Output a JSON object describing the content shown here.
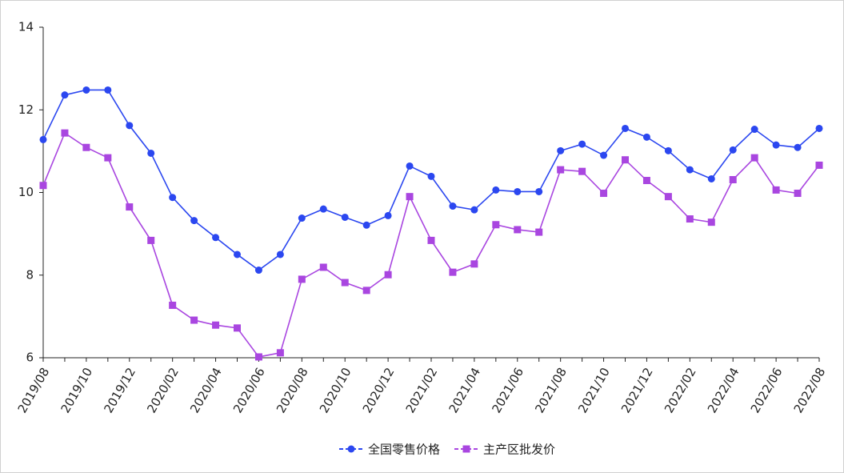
{
  "chart_data": {
    "type": "line",
    "categories": [
      "2019/08",
      null,
      "2019/10",
      null,
      "2019/12",
      null,
      "2020/02",
      null,
      "2020/04",
      null,
      "2020/06",
      null,
      "2020/08",
      null,
      "2020/10",
      null,
      "2020/12",
      null,
      "2021/02",
      null,
      "2021/04",
      null,
      "2021/06",
      null,
      "2021/08",
      null,
      "2021/10",
      null,
      "2021/12",
      null,
      "2022/02",
      null,
      "2022/04",
      null,
      "2022/06",
      null,
      "2022/08"
    ],
    "series": [
      {
        "name": "全国零售价格",
        "color": "#2b47f0",
        "marker": "circle",
        "values": [
          11.28,
          12.36,
          12.48,
          12.48,
          11.62,
          10.95,
          9.88,
          9.32,
          8.91,
          8.5,
          8.12,
          8.5,
          9.38,
          9.6,
          9.4,
          9.21,
          9.44,
          10.64,
          10.39,
          9.67,
          9.58,
          10.06,
          10.02,
          10.02,
          11.01,
          11.17,
          10.9,
          11.55,
          11.34,
          11.01,
          10.55,
          10.33,
          11.03,
          11.53,
          11.15,
          11.09,
          11.55
        ]
      },
      {
        "name": "主产区批发价",
        "color": "#a946e0",
        "marker": "square",
        "values": [
          10.17,
          11.44,
          11.09,
          10.84,
          9.65,
          8.84,
          7.27,
          6.91,
          6.79,
          6.72,
          6.02,
          6.12,
          7.9,
          8.19,
          7.82,
          7.63,
          8.01,
          9.9,
          8.84,
          8.07,
          8.27,
          9.22,
          9.1,
          9.04,
          10.55,
          10.51,
          9.98,
          10.79,
          10.29,
          9.9,
          9.36,
          9.28,
          10.31,
          10.84,
          10.06,
          9.98,
          10.66
        ]
      }
    ],
    "ylim": [
      6,
      14
    ],
    "yticks": [
      6,
      8,
      10,
      12,
      14
    ],
    "grid": false,
    "legend": "bottom"
  }
}
